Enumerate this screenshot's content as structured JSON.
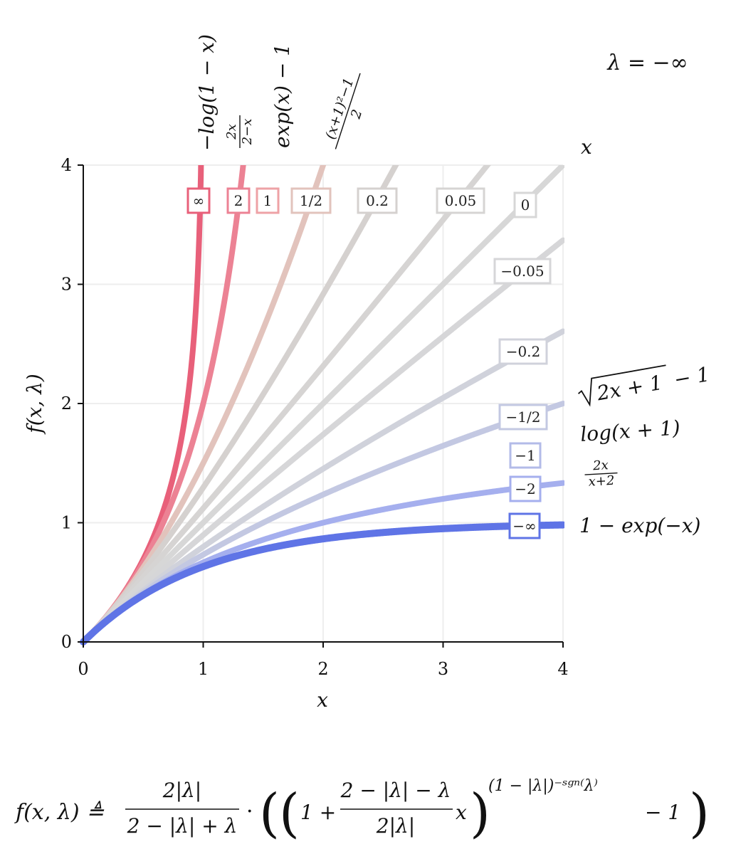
{
  "chart_data": {
    "type": "line",
    "title": "λ = −∞",
    "xlabel": "x",
    "ylabel": "f(x, λ)",
    "xlim": [
      0,
      4
    ],
    "ylim": [
      0,
      4
    ],
    "xticks": [
      "0",
      "1",
      "2",
      "3",
      "4"
    ],
    "yticks": [
      "0",
      "1",
      "2",
      "3",
      "4"
    ],
    "grid": true,
    "formula": "f(x, λ) ≜ 2|λ| / (2 − |λ| + λ) · ((1 + (2 − |λ| − λ)/(2|λ|) · x)^((1 − |λ|)^(−sgn(λ))) − 1)",
    "highlighted_series": "−∞",
    "series": [
      {
        "name": "∞",
        "lambda": "inf",
        "color": "#e8607a",
        "curve_label": "−log(1 − x)"
      },
      {
        "name": "2",
        "lambda": 2,
        "color": "#ec8294",
        "curve_label": "2x/(2−x)"
      },
      {
        "name": "1",
        "lambda": 1,
        "color": "#eea2a6",
        "curve_label": "exp(x) − 1"
      },
      {
        "name": "1/2",
        "lambda": 0.5,
        "color": "#e2c3bc",
        "curve_label": "((x+1)^2 − 1)/2"
      },
      {
        "name": "0.2",
        "lambda": 0.2,
        "color": "#d5d1cf"
      },
      {
        "name": "0.05",
        "lambda": 0.05,
        "color": "#d6d4d3"
      },
      {
        "name": "0",
        "lambda": 0,
        "color": "#d7d7d7",
        "curve_label": "x"
      },
      {
        "name": "−0.05",
        "lambda": -0.05,
        "color": "#d6d6d8"
      },
      {
        "name": "−0.2",
        "lambda": -0.2,
        "color": "#d0d2db"
      },
      {
        "name": "−1/2",
        "lambda": -0.5,
        "color": "#c3c8e2",
        "curve_label": "√(2x+1) − 1"
      },
      {
        "name": "−1",
        "lambda": -1,
        "color": "#b3bbe8",
        "curve_label": "log(x + 1)"
      },
      {
        "name": "−2",
        "lambda": -2,
        "color": "#a5afee",
        "curve_label": "2x/(x+2)"
      },
      {
        "name": "−∞",
        "lambda": "-inf",
        "color": "#5f74e6",
        "curve_label": "1 − exp(−x)"
      }
    ]
  }
}
